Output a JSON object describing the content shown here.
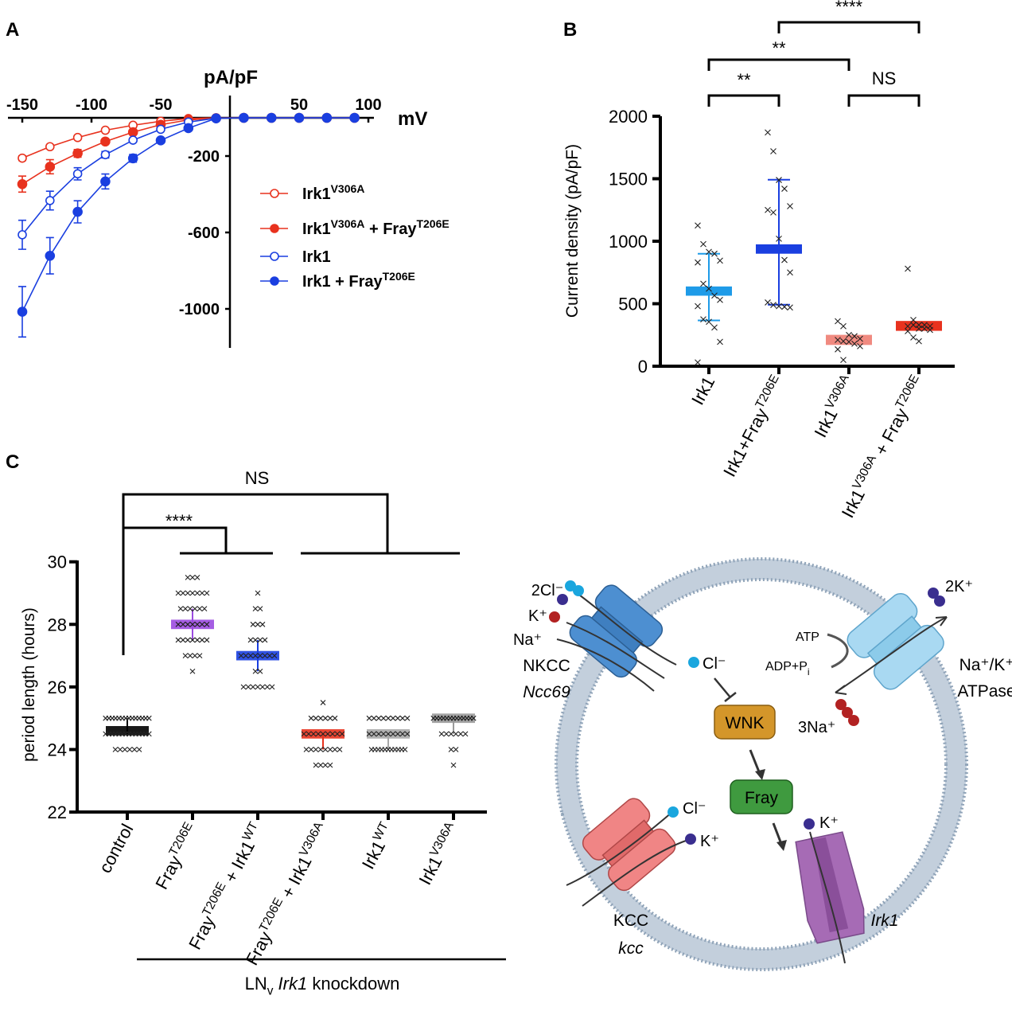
{
  "panels": {
    "a": "A",
    "b": "B",
    "c": "C"
  },
  "chart_data": [
    {
      "panel": "A",
      "type": "line",
      "xlabel": "mV",
      "ylabel": "pA/pF",
      "xlim": [
        -160,
        100
      ],
      "ylim": [
        -1150,
        0
      ],
      "x_ticks": [
        -150,
        -100,
        -50,
        50,
        100
      ],
      "y_ticks": [
        -200,
        -600,
        -1000
      ],
      "legend_position": "right",
      "x": [
        -150,
        -130,
        -110,
        -90,
        -70,
        -50,
        -30,
        -10,
        10,
        30,
        50,
        70,
        90
      ],
      "series": [
        {
          "name": [
            {
              "t": "Irk1"
            },
            {
              "t": "V306A",
              "sup": true
            }
          ],
          "color": "#e8321e",
          "marker": "open",
          "values": [
            -211,
            -151,
            -103,
            -65,
            -39,
            -18,
            -4,
            0,
            0,
            0,
            0,
            0,
            0
          ],
          "errors": [
            12,
            6,
            5,
            4,
            3,
            2,
            1,
            0,
            0,
            0,
            0,
            0,
            0
          ]
        },
        {
          "name": [
            {
              "t": "Irk1"
            },
            {
              "t": "V306A",
              "sup": true
            },
            {
              "t": " + Fray"
            },
            {
              "t": "T206E",
              "sup": true
            }
          ],
          "color": "#e8321e",
          "marker": "filled",
          "values": [
            -347,
            -256,
            -186,
            -124,
            -75,
            -36,
            -11,
            -2,
            0,
            0,
            0,
            0,
            0
          ],
          "errors": [
            42,
            37,
            20,
            12,
            6,
            3,
            2,
            0,
            0,
            0,
            0,
            0,
            0
          ]
        },
        {
          "name": [
            {
              "t": "Irk1"
            }
          ],
          "color": "#1a3fe0",
          "marker": "open",
          "values": [
            -612,
            -433,
            -293,
            -193,
            -117,
            -60,
            -22,
            -2,
            0,
            0,
            0,
            0,
            0
          ],
          "errors": [
            76,
            49,
            32,
            17,
            6,
            4,
            2,
            0,
            0,
            0,
            0,
            0,
            0
          ]
        },
        {
          "name": [
            {
              "t": "Irk1 + Fray"
            },
            {
              "t": "T206E",
              "sup": true
            }
          ],
          "color": "#1a3fe0",
          "marker": "filled",
          "values": [
            -1015,
            -722,
            -492,
            -333,
            -212,
            -118,
            -54,
            -3,
            0,
            0,
            0,
            0,
            0
          ],
          "errors": [
            132,
            95,
            58,
            39,
            20,
            8,
            4,
            0,
            0,
            0,
            0,
            0,
            0
          ]
        }
      ]
    },
    {
      "panel": "B",
      "type": "scatter",
      "ylabel": "Current density (pA/pF)",
      "ylim": [
        0,
        2000
      ],
      "y_ticks": [
        0,
        500,
        1000,
        1500,
        2000
      ],
      "categories": [
        [
          {
            "t": "Irk1"
          }
        ],
        [
          {
            "t": "Irk1+Fray"
          },
          {
            "t": "T206E",
            "sup": true
          }
        ],
        [
          {
            "t": "Irk1"
          },
          {
            "t": "V306A",
            "sup": true
          }
        ],
        [
          {
            "t": "Irk1"
          },
          {
            "t": "V306A",
            "sup": true
          },
          {
            "t": " + Fray"
          },
          {
            "t": "T206E",
            "sup": true
          }
        ]
      ],
      "groups": [
        {
          "color": "#1e9be8",
          "box": [
            564,
            638
          ],
          "whisker": [
            366,
            900
          ],
          "points": [
            1126,
            977,
            915,
            900,
            845,
            830,
            660,
            620,
            565,
            530,
            480,
            375,
            355,
            310,
            195,
            30
          ]
        },
        {
          "color": "#1a3fe0",
          "box": [
            900,
            975
          ],
          "whisker": [
            492,
            1492
          ],
          "points": [
            1870,
            1720,
            1490,
            1420,
            1280,
            1250,
            1230,
            1020,
            850,
            750,
            510,
            490,
            480,
            475,
            470
          ]
        },
        {
          "color": "#f08a80",
          "box": [
            170,
            251
          ],
          "whisker": null,
          "points": [
            360,
            320,
            250,
            240,
            220,
            210,
            200,
            195,
            180,
            160,
            135,
            50
          ]
        },
        {
          "color": "#e8321e",
          "box": [
            283,
            362
          ],
          "whisker": null,
          "points": [
            780,
            370,
            330,
            330,
            320,
            320,
            330,
            300,
            300,
            290,
            280,
            230,
            200
          ]
        }
      ],
      "significance": [
        {
          "from": 0,
          "to": 1,
          "label": "**"
        },
        {
          "from": 0,
          "to": 2,
          "label": "**"
        },
        {
          "from": 2,
          "to": 3,
          "label": "NS"
        },
        {
          "from": 1,
          "to": 3,
          "label": "****"
        }
      ]
    },
    {
      "panel": "C",
      "type": "scatter",
      "ylabel": "period length (hours)",
      "ylim": [
        22,
        30
      ],
      "y_ticks": [
        22,
        24,
        26,
        28,
        30
      ],
      "categories": [
        [
          {
            "t": "control"
          }
        ],
        [
          {
            "t": "Fray"
          },
          {
            "t": "T206E",
            "sup": true
          }
        ],
        [
          {
            "t": "Fray"
          },
          {
            "t": "T206E",
            "sup": true
          },
          {
            "t": " + Irk1"
          },
          {
            "t": "WT",
            "sup": true
          }
        ],
        [
          {
            "t": "Fray"
          },
          {
            "t": "T206E",
            "sup": true
          },
          {
            "t": " + Irk1"
          },
          {
            "t": "V306A",
            "sup": true
          }
        ],
        [
          {
            "t": "Irk1"
          },
          {
            "t": "WT",
            "sup": true
          }
        ],
        [
          {
            "t": "Irk1"
          },
          {
            "t": "V306A",
            "sup": true
          }
        ]
      ],
      "groups": [
        {
          "color": "#000000",
          "box": [
            24.45,
            24.75
          ],
          "whisker": [
            24.5,
            25
          ],
          "points": {
            "25": 14,
            "24.5": 14,
            "24": 6
          }
        },
        {
          "color": "#9b4be0",
          "box": [
            27.85,
            28.15
          ],
          "whisker": [
            27.5,
            28.5
          ],
          "points": {
            "29.5": 3,
            "29": 7,
            "28.5": 6,
            "28": 7,
            "27.5": 7,
            "27": 4,
            "26.5": 1
          }
        },
        {
          "color": "#1a3fe0",
          "box": [
            26.85,
            27.15
          ],
          "whisker": [
            26.5,
            27.5
          ],
          "points": {
            "29": 1,
            "28.5": 2,
            "28": 3,
            "27.5": 4,
            "27": 8,
            "26.5": 2,
            "26": 7
          }
        },
        {
          "color": "#e8321e",
          "box": [
            24.35,
            24.65
          ],
          "whisker": [
            24,
            24.5
          ],
          "points": {
            "25.5": 1,
            "25": 6,
            "24.5": 9,
            "24": 8,
            "23.5": 4
          }
        },
        {
          "color": "#a8a8a8",
          "box": [
            24.35,
            24.65
          ],
          "whisker": [
            24,
            24.5
          ],
          "points": {
            "25": 9,
            "24.5": 9,
            "24": 11
          }
        },
        {
          "color": "#9a9a9a",
          "box": [
            24.85,
            25.15
          ],
          "whisker": [
            24.5,
            25
          ],
          "points": {
            "25": 13,
            "24.5": 6,
            "24": 2,
            "23.5": 1
          }
        }
      ],
      "significance": [
        {
          "from": 0,
          "to": [
            1,
            2
          ],
          "label": "****"
        },
        {
          "from": 0,
          "to": [
            3,
            5
          ],
          "label": "NS"
        }
      ],
      "footer": [
        {
          "t": "LN"
        },
        {
          "t": "v",
          "sub": true
        },
        {
          "t": " "
        },
        {
          "t": "Irk1",
          "italic": true
        },
        {
          "t": " knockdown"
        }
      ]
    }
  ],
  "diagram": {
    "nkcc_ions": [
      "2Cl⁻",
      "K⁺",
      "Na⁺"
    ],
    "nkcc_name": "NKCC",
    "nkcc_gene": "Ncc69",
    "cl_inside": "Cl⁻",
    "wnk": "WNK",
    "fray": "Fray",
    "atp": "ATP",
    "adp": "ADP+P",
    "adp_sub": "i",
    "pump_k": "2K⁺",
    "pump_name_1": "Na⁺/K⁺",
    "pump_name_2": "ATPase",
    "pump_na": "3Na⁺",
    "kcc_cl": "Cl⁻",
    "kcc_k": "K⁺",
    "kcc_name": "KCC",
    "kcc_gene": "kcc",
    "irk_k": "K⁺",
    "irk_gene": "Irk1",
    "colors": {
      "nkcc": "#4d8fd1",
      "atpase": "#a9d9f2",
      "kcc": "#f08585",
      "irk1": "#a66bb5",
      "wnk": "#d4962a",
      "fray": "#3f9a3f",
      "membrane": "#c3cfdc",
      "cl": "#1aa6de",
      "k": "#3a2e8f",
      "na": "#b22222"
    }
  }
}
